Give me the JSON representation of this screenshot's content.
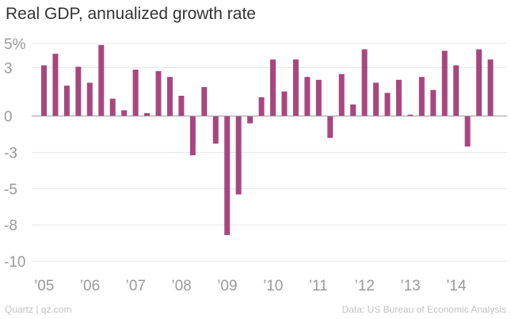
{
  "chart_data": {
    "type": "bar",
    "title": "Real GDP, annualized growth rate",
    "xlabel": "",
    "ylabel": "",
    "y_tick_labels": [
      "5%",
      "3",
      "0",
      "-3",
      "-5",
      "-8",
      "-10"
    ],
    "y_tick_values": [
      5,
      3.333,
      0,
      -2.5,
      -5,
      -7.5,
      -10
    ],
    "ylim": [
      -10,
      5
    ],
    "x_tick_labels": [
      "’05",
      "’06",
      "’07",
      "’08",
      "’09",
      "’10",
      "’11",
      "’12",
      "’13",
      "’14"
    ],
    "x_tick_quarter_index": [
      0,
      4,
      8,
      12,
      16,
      20,
      24,
      28,
      32,
      36
    ],
    "categories": [
      "2005 Q1",
      "2005 Q2",
      "2005 Q3",
      "2005 Q4",
      "2006 Q1",
      "2006 Q2",
      "2006 Q3",
      "2006 Q4",
      "2007 Q1",
      "2007 Q2",
      "2007 Q3",
      "2007 Q4",
      "2008 Q1",
      "2008 Q2",
      "2008 Q3",
      "2008 Q4",
      "2009 Q1",
      "2009 Q2",
      "2009 Q3",
      "2009 Q4",
      "2010 Q1",
      "2010 Q2",
      "2010 Q3",
      "2010 Q4",
      "2011 Q1",
      "2011 Q2",
      "2011 Q3",
      "2011 Q4",
      "2012 Q1",
      "2012 Q2",
      "2012 Q3",
      "2012 Q4",
      "2013 Q1",
      "2013 Q2",
      "2013 Q3",
      "2013 Q4",
      "2014 Q1",
      "2014 Q2",
      "2014 Q3",
      "2014 Q4"
    ],
    "values": [
      3.5,
      4.3,
      2.1,
      3.4,
      2.3,
      4.9,
      1.2,
      0.4,
      3.2,
      0.2,
      3.1,
      2.7,
      1.4,
      -2.7,
      2.0,
      -1.9,
      -8.2,
      -5.4,
      -0.5,
      1.3,
      3.9,
      1.7,
      3.9,
      2.7,
      2.5,
      -1.5,
      2.9,
      0.8,
      4.6,
      2.3,
      1.6,
      2.5,
      0.1,
      2.7,
      1.8,
      4.5,
      3.5,
      -2.1,
      4.6,
      3.9
    ],
    "bar_color": "#a8467f",
    "grid": true
  },
  "footer": {
    "source_left": "Quartz | qz.com",
    "source_right": "Data: US Bureau of Economic Analysis"
  }
}
